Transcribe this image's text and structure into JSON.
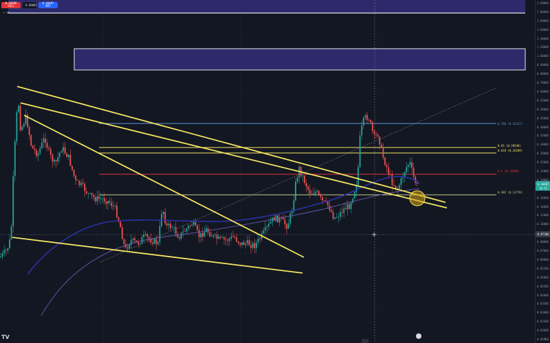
{
  "top_bar": {
    "sell_price": "0.10486",
    "sell_label": "SELL",
    "spread": "0.00001",
    "buy_price": "0.10487",
    "buy_label": "BUY"
  },
  "minus_label": "− ≡",
  "axis_ticks": [
    "2.60000",
    "2.00000",
    "1.80000",
    "1.60000",
    "1.40000",
    "1.20000",
    "1.00000",
    "0.90000",
    "0.80000",
    "0.70000",
    "0.60000",
    "0.55000",
    "0.50000",
    "0.45000",
    "0.40000",
    "0.35000",
    "0.30000",
    "0.28000",
    "0.25000",
    "0.22000",
    "0.20000",
    "0.18000",
    "0.16000",
    "0.14000",
    "0.12000",
    "0.10000",
    "0.09000",
    "0.08000",
    "0.07000",
    "0.06000",
    "0.05500",
    "0.05000",
    "0.04500",
    "0.04000",
    "0.03500",
    "0.03000",
    "0.02500",
    "0.02000",
    "0.01800"
  ],
  "price_tags": {
    "current": "0.10487",
    "current_time": "14:15",
    "crosshair": "0.07384"
  },
  "fib_levels": [
    {
      "label": "0.786 (0.41317)",
      "color": "#5b9bd5"
    },
    {
      "label": "0.65 (0.28548)",
      "color": "#f5e663"
    },
    {
      "label": "0.618 (0.26109)",
      "color": "#f5e663"
    },
    {
      "label": "0.5 (0.19998)",
      "color": "#e0353a"
    },
    {
      "label": "0.382 (0.13778)",
      "color": "#c9d28a"
    }
  ],
  "logo": "TV",
  "colors": {
    "background": "#131722",
    "zone": "#2d2a6b",
    "trendline": "#f5e663",
    "moving_average": "#2b31a8",
    "candle_up": "#26a69a",
    "candle_down": "#ef5350"
  }
}
